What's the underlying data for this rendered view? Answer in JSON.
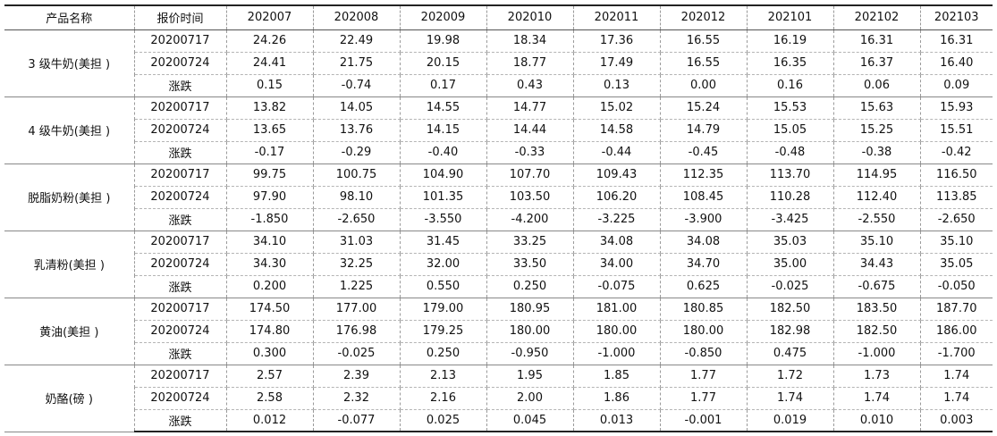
{
  "table": {
    "header": [
      "产品名称",
      "报价时间",
      "202007",
      "202008",
      "202009",
      "202010",
      "202011",
      "202012",
      "202101",
      "202102",
      "202103"
    ],
    "groups": [
      {
        "product": "3 级牛奶(美担 )",
        "rows": [
          {
            "time": "20200717",
            "values": [
              "24.26",
              "22.49",
              "19.98",
              "18.34",
              "17.36",
              "16.55",
              "16.19",
              "16.31",
              "16.31"
            ]
          },
          {
            "time": "20200724",
            "values": [
              "24.41",
              "21.75",
              "20.15",
              "18.77",
              "17.49",
              "16.55",
              "16.35",
              "16.37",
              "16.40"
            ]
          },
          {
            "time": "涨跌",
            "values": [
              "0.15",
              "-0.74",
              "0.17",
              "0.43",
              "0.13",
              "0.00",
              "0.16",
              "0.06",
              "0.09"
            ]
          }
        ]
      },
      {
        "product": "4 级牛奶(美担 )",
        "rows": [
          {
            "time": "20200717",
            "values": [
              "13.82",
              "14.05",
              "14.55",
              "14.77",
              "15.02",
              "15.24",
              "15.53",
              "15.63",
              "15.93"
            ]
          },
          {
            "time": "20200724",
            "values": [
              "13.65",
              "13.76",
              "14.15",
              "14.44",
              "14.58",
              "14.79",
              "15.05",
              "15.25",
              "15.51"
            ]
          },
          {
            "time": "涨跌",
            "values": [
              "-0.17",
              "-0.29",
              "-0.40",
              "-0.33",
              "-0.44",
              "-0.45",
              "-0.48",
              "-0.38",
              "-0.42"
            ]
          }
        ]
      },
      {
        "product": "脱脂奶粉(美担 )",
        "rows": [
          {
            "time": "20200717",
            "values": [
              "99.75",
              "100.75",
              "104.90",
              "107.70",
              "109.43",
              "112.35",
              "113.70",
              "114.95",
              "116.50"
            ]
          },
          {
            "time": "20200724",
            "values": [
              "97.90",
              "98.10",
              "101.35",
              "103.50",
              "106.20",
              "108.45",
              "110.28",
              "112.40",
              "113.85"
            ]
          },
          {
            "time": "涨跌",
            "values": [
              "-1.850",
              "-2.650",
              "-3.550",
              "-4.200",
              "-3.225",
              "-3.900",
              "-3.425",
              "-2.550",
              "-2.650"
            ]
          }
        ]
      },
      {
        "product": "乳清粉(美担 )",
        "rows": [
          {
            "time": "20200717",
            "values": [
              "34.10",
              "31.03",
              "31.45",
              "33.25",
              "34.08",
              "34.08",
              "35.03",
              "35.10",
              "35.10"
            ]
          },
          {
            "time": "20200724",
            "values": [
              "34.30",
              "32.25",
              "32.00",
              "33.50",
              "34.00",
              "34.70",
              "35.00",
              "34.43",
              "35.05"
            ]
          },
          {
            "time": "涨跌",
            "values": [
              "0.200",
              "1.225",
              "0.550",
              "0.250",
              "-0.075",
              "0.625",
              "-0.025",
              "-0.675",
              "-0.050"
            ]
          }
        ]
      },
      {
        "product": "黄油(美担 )",
        "rows": [
          {
            "time": "20200717",
            "values": [
              "174.50",
              "177.00",
              "179.00",
              "180.95",
              "181.00",
              "180.85",
              "182.50",
              "183.50",
              "187.70"
            ]
          },
          {
            "time": "20200724",
            "values": [
              "174.80",
              "176.98",
              "179.25",
              "180.00",
              "180.00",
              "180.00",
              "182.98",
              "182.50",
              "186.00"
            ]
          },
          {
            "time": "涨跌",
            "values": [
              "0.300",
              "-0.025",
              "0.250",
              "-0.950",
              "-1.000",
              "-0.850",
              "0.475",
              "-1.000",
              "-1.700"
            ]
          }
        ]
      },
      {
        "product": "奶酪(磅 )",
        "rows": [
          {
            "time": "20200717",
            "values": [
              "2.57",
              "2.39",
              "2.13",
              "1.95",
              "1.85",
              "1.77",
              "1.72",
              "1.73",
              "1.74"
            ]
          },
          {
            "time": "20200724",
            "values": [
              "2.58",
              "2.32",
              "2.16",
              "2.00",
              "1.86",
              "1.77",
              "1.74",
              "1.74",
              "1.74"
            ]
          },
          {
            "time": "涨跌",
            "values": [
              "0.012",
              "-0.077",
              "0.025",
              "0.045",
              "0.013",
              "-0.001",
              "0.019",
              "0.010",
              "0.003"
            ]
          }
        ]
      }
    ]
  }
}
